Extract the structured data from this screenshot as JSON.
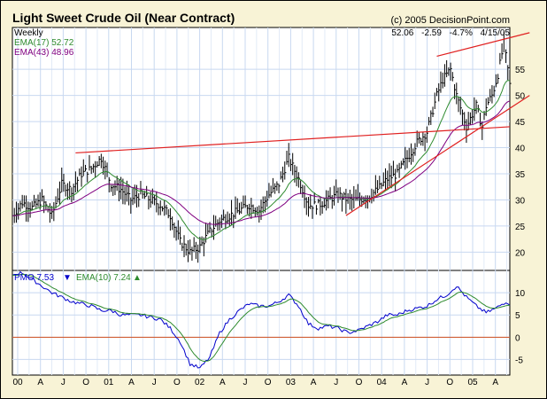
{
  "chart_data": {
    "type": "line",
    "title": "Light Sweet Crude Oil (Near Contract)",
    "copyright": "(c) 2005 DecisionPoint.com",
    "period": "Weekly",
    "readout": {
      "last": "52.06",
      "change": "-2.59",
      "pct": "-4.7%",
      "date": "4/15/05"
    },
    "x_ticks": [
      "00",
      "A",
      "J",
      "O",
      "01",
      "A",
      "J",
      "O",
      "02",
      "A",
      "J",
      "O",
      "03",
      "A",
      "J",
      "O",
      "04",
      "A",
      "J",
      "O",
      "05",
      "A"
    ],
    "price_panel": {
      "ylim": [
        16.5,
        63
      ],
      "y_ticks": [
        20,
        25,
        30,
        35,
        40,
        45,
        50,
        55
      ],
      "series": [
        {
          "name": "EMA(17)",
          "label": "EMA(17) 52.72",
          "color": "#2e8b2e"
        },
        {
          "name": "EMA(43)",
          "label": "EMA(43) 48.96",
          "color": "#800080"
        }
      ],
      "price_anchors": [
        [
          0,
          27
        ],
        [
          5,
          29.5
        ],
        [
          10,
          28.5
        ],
        [
          15,
          30
        ],
        [
          20,
          27
        ],
        [
          25,
          33
        ],
        [
          30,
          32
        ],
        [
          35,
          35
        ],
        [
          40,
          36
        ],
        [
          45,
          38
        ],
        [
          50,
          33
        ],
        [
          55,
          32
        ],
        [
          60,
          30
        ],
        [
          65,
          31
        ],
        [
          70,
          30
        ],
        [
          75,
          29
        ],
        [
          80,
          27
        ],
        [
          85,
          22
        ],
        [
          90,
          20
        ],
        [
          95,
          21
        ],
        [
          100,
          24
        ],
        [
          105,
          26
        ],
        [
          110,
          27
        ],
        [
          115,
          28
        ],
        [
          120,
          29
        ],
        [
          125,
          28
        ],
        [
          130,
          31
        ],
        [
          135,
          33
        ],
        [
          140,
          38
        ],
        [
          145,
          34
        ],
        [
          150,
          29
        ],
        [
          155,
          29
        ],
        [
          160,
          30
        ],
        [
          165,
          31
        ],
        [
          170,
          30
        ],
        [
          175,
          30
        ],
        [
          180,
          30.5
        ],
        [
          185,
          32
        ],
        [
          190,
          34
        ],
        [
          195,
          35
        ],
        [
          200,
          38
        ],
        [
          205,
          41
        ],
        [
          210,
          43
        ],
        [
          215,
          50
        ],
        [
          218,
          53
        ],
        [
          222,
          55
        ],
        [
          225,
          50
        ],
        [
          230,
          44
        ],
        [
          235,
          48
        ],
        [
          238,
          44
        ],
        [
          240,
          48
        ],
        [
          243,
          50
        ],
        [
          246,
          54
        ],
        [
          249,
          60
        ],
        [
          251,
          55
        ],
        [
          252,
          52
        ]
      ],
      "trendlines": [
        {
          "name": "upper-resistance",
          "points": [
            [
              32,
              39
            ],
            [
              252,
              44
            ]
          ]
        },
        {
          "name": "rising-support",
          "points": [
            [
              169,
              27
            ],
            [
              262,
              50
            ]
          ]
        },
        {
          "name": "rising-resistance",
          "points": [
            [
              215,
              57.5
            ],
            [
              262,
              62
            ]
          ]
        }
      ]
    },
    "pmo_panel": {
      "ylim": [
        -8.5,
        15
      ],
      "y_ticks": [
        -5,
        0,
        5,
        10
      ],
      "zero_line": 0,
      "series": [
        {
          "name": "PMO",
          "label": "PMO  7.53",
          "color": "#0000cc"
        },
        {
          "name": "EMA(10)",
          "label": "EMA(10)  7.24",
          "color": "#2e8b2e"
        }
      ],
      "pmo_anchors": [
        [
          0,
          14
        ],
        [
          5,
          14.5
        ],
        [
          10,
          13
        ],
        [
          15,
          11.5
        ],
        [
          20,
          10
        ],
        [
          25,
          9
        ],
        [
          30,
          8
        ],
        [
          35,
          7.5
        ],
        [
          40,
          7
        ],
        [
          45,
          6
        ],
        [
          50,
          6
        ],
        [
          55,
          5
        ],
        [
          60,
          5
        ],
        [
          65,
          5
        ],
        [
          70,
          4.5
        ],
        [
          75,
          4
        ],
        [
          80,
          2
        ],
        [
          85,
          -1
        ],
        [
          90,
          -6
        ],
        [
          95,
          -7
        ],
        [
          100,
          -4.5
        ],
        [
          105,
          1
        ],
        [
          110,
          4
        ],
        [
          115,
          6
        ],
        [
          120,
          7.5
        ],
        [
          125,
          7
        ],
        [
          130,
          7
        ],
        [
          135,
          8
        ],
        [
          140,
          9.5
        ],
        [
          145,
          7
        ],
        [
          150,
          3
        ],
        [
          155,
          2
        ],
        [
          160,
          2.5
        ],
        [
          165,
          2
        ],
        [
          170,
          1
        ],
        [
          175,
          1.5
        ],
        [
          180,
          2.5
        ],
        [
          185,
          3.5
        ],
        [
          190,
          5
        ],
        [
          195,
          5
        ],
        [
          200,
          6
        ],
        [
          205,
          6.5
        ],
        [
          210,
          7
        ],
        [
          215,
          8.5
        ],
        [
          220,
          9.5
        ],
        [
          225,
          11.5
        ],
        [
          230,
          9
        ],
        [
          235,
          7
        ],
        [
          240,
          5.5
        ],
        [
          245,
          6.5
        ],
        [
          250,
          8
        ],
        [
          252,
          7.5
        ]
      ],
      "arrows": {
        "pmo": "down",
        "ema": "up"
      }
    }
  }
}
